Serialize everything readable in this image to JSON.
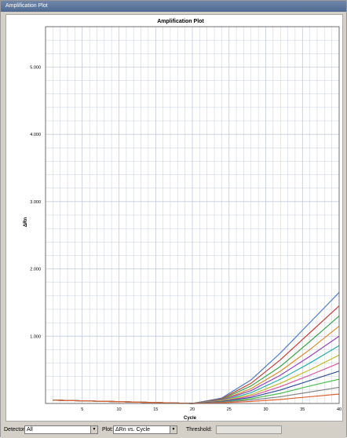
{
  "window": {
    "title": "Amplification Plot"
  },
  "controls": {
    "detector_label": "Detector:",
    "detector_value": "All",
    "plot_label": "Plot:",
    "plot_value": "ΔRn vs. Cycle",
    "threshold_label": "Threshold:",
    "threshold_value": ""
  },
  "colors": {
    "grid": "#b9c3d6",
    "axis": "#000000",
    "title_bar": "#4f6a92"
  },
  "chart_data": {
    "type": "line",
    "title": "Amplification Plot",
    "xlabel": "Cycle",
    "ylabel": "ΔRn",
    "xlim": [
      0,
      40
    ],
    "ylim": [
      0,
      5.6
    ],
    "x_ticks": [
      0,
      5,
      10,
      15,
      20,
      25,
      30,
      35,
      40
    ],
    "x_tick_labels": [
      "",
      "5",
      "10",
      "15",
      "20",
      "25",
      "30",
      "35",
      "40"
    ],
    "y_ticks": [
      1,
      2,
      3,
      4,
      5
    ],
    "y_tick_labels": [
      "1.000",
      "2.000",
      "3.000",
      "4.000",
      "5.000"
    ],
    "grid": true,
    "series_note": "dense family of sigmoid curves",
    "series": [
      {
        "color": "#4a7fd0",
        "values": [
          [
            1,
            0.05
          ],
          [
            20,
            0.0
          ],
          [
            24,
            0.08
          ],
          [
            28,
            0.35
          ],
          [
            32,
            0.75
          ],
          [
            36,
            1.2
          ],
          [
            40,
            1.65
          ]
        ]
      },
      {
        "color": "#d03a3a",
        "values": [
          [
            1,
            0.05
          ],
          [
            20,
            0.0
          ],
          [
            24,
            0.07
          ],
          [
            28,
            0.3
          ],
          [
            32,
            0.65
          ],
          [
            36,
            1.05
          ],
          [
            40,
            1.45
          ]
        ]
      },
      {
        "color": "#3aa84a",
        "values": [
          [
            1,
            0.05
          ],
          [
            20,
            0.0
          ],
          [
            24,
            0.06
          ],
          [
            28,
            0.26
          ],
          [
            32,
            0.55
          ],
          [
            36,
            0.92
          ],
          [
            40,
            1.3
          ]
        ]
      },
      {
        "color": "#e08a20",
        "values": [
          [
            1,
            0.05
          ],
          [
            20,
            0.0
          ],
          [
            24,
            0.05
          ],
          [
            28,
            0.22
          ],
          [
            32,
            0.48
          ],
          [
            36,
            0.8
          ],
          [
            40,
            1.15
          ]
        ]
      },
      {
        "color": "#9a40c0",
        "values": [
          [
            1,
            0.05
          ],
          [
            20,
            0.0
          ],
          [
            24,
            0.05
          ],
          [
            28,
            0.19
          ],
          [
            32,
            0.42
          ],
          [
            36,
            0.7
          ],
          [
            40,
            1.0
          ]
        ]
      },
      {
        "color": "#20b0b0",
        "values": [
          [
            1,
            0.05
          ],
          [
            20,
            0.0
          ],
          [
            24,
            0.04
          ],
          [
            28,
            0.16
          ],
          [
            32,
            0.36
          ],
          [
            36,
            0.6
          ],
          [
            40,
            0.86
          ]
        ]
      },
      {
        "color": "#c0c020",
        "values": [
          [
            1,
            0.05
          ],
          [
            20,
            0.0
          ],
          [
            24,
            0.04
          ],
          [
            28,
            0.13
          ],
          [
            32,
            0.3
          ],
          [
            36,
            0.5
          ],
          [
            40,
            0.72
          ]
        ]
      },
      {
        "color": "#e050a0",
        "values": [
          [
            1,
            0.05
          ],
          [
            20,
            0.0
          ],
          [
            24,
            0.03
          ],
          [
            28,
            0.11
          ],
          [
            32,
            0.25
          ],
          [
            36,
            0.42
          ],
          [
            40,
            0.6
          ]
        ]
      },
      {
        "color": "#3050a0",
        "values": [
          [
            1,
            0.05
          ],
          [
            20,
            0.0
          ],
          [
            24,
            0.03
          ],
          [
            28,
            0.09
          ],
          [
            32,
            0.2
          ],
          [
            36,
            0.34
          ],
          [
            40,
            0.48
          ]
        ]
      },
      {
        "color": "#50c050",
        "values": [
          [
            1,
            0.05
          ],
          [
            20,
            0.0
          ],
          [
            24,
            0.02
          ],
          [
            28,
            0.07
          ],
          [
            32,
            0.15
          ],
          [
            36,
            0.26
          ],
          [
            40,
            0.36
          ]
        ]
      },
      {
        "color": "#808080",
        "values": [
          [
            1,
            0.05
          ],
          [
            20,
            0.0
          ],
          [
            24,
            0.02
          ],
          [
            28,
            0.05
          ],
          [
            32,
            0.1
          ],
          [
            36,
            0.17
          ],
          [
            40,
            0.24
          ]
        ]
      },
      {
        "color": "#e06030",
        "values": [
          [
            1,
            0.05
          ],
          [
            20,
            0.0
          ],
          [
            24,
            0.01
          ],
          [
            28,
            0.03
          ],
          [
            32,
            0.06
          ],
          [
            36,
            0.1
          ],
          [
            40,
            0.14
          ]
        ]
      }
    ]
  }
}
